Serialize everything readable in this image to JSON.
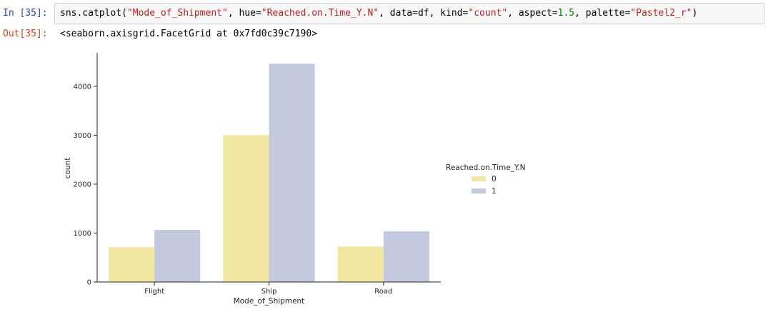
{
  "cell_in": {
    "prompt": "In [35]:",
    "code": {
      "p0": "sns.catplot(",
      "s0": "\"Mode_of_Shipment\"",
      "p1": ", hue=",
      "s1": "\"Reached.on.Time_Y.N\"",
      "p2": ", data=df, kind=",
      "s2": "\"count\"",
      "p3": ", aspect=",
      "n0": "1.5",
      "p4": ", palette=",
      "s3": "\"Pastel2_r\"",
      "p5": ")"
    }
  },
  "cell_out": {
    "prompt": "Out[35]:",
    "text": "<seaborn.axisgrid.FacetGrid at 0x7fd0c39c7190>"
  },
  "chart_data": {
    "type": "bar",
    "categories": [
      "Flight",
      "Ship",
      "Road"
    ],
    "series": [
      {
        "name": "0",
        "values": [
          710,
          3000,
          725
        ],
        "color": "#f2e6a3"
      },
      {
        "name": "1",
        "values": [
          1065,
          4460,
          1035
        ],
        "color": "#c4cadd"
      }
    ],
    "xlabel": "Mode_of_Shipment",
    "ylabel": "count",
    "yticks": [
      0,
      1000,
      2000,
      3000,
      4000
    ],
    "ylim": [
      0,
      4683
    ],
    "legend_title": "Reached.on.Time_Y.N",
    "legend_position": "right",
    "grid": false
  }
}
